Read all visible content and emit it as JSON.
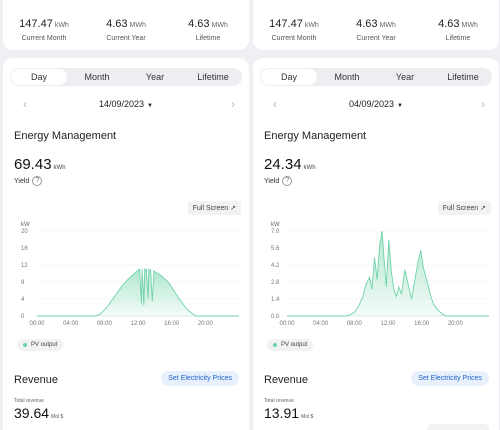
{
  "panes": [
    {
      "summary": [
        {
          "value": "147.47",
          "unit": "kWh",
          "label": "Current Month"
        },
        {
          "value": "4.63",
          "unit": "MWh",
          "label": "Current Year"
        },
        {
          "value": "4.63",
          "unit": "MWh",
          "label": "Lifetime"
        }
      ],
      "tabs": [
        {
          "label": "Day",
          "active": true
        },
        {
          "label": "Month",
          "active": false
        },
        {
          "label": "Year",
          "active": false
        },
        {
          "label": "Lifetime",
          "active": false
        }
      ],
      "date": "14/09/2023",
      "section_title": "Energy Management",
      "yield": {
        "value": "69.43",
        "unit": "kWh",
        "label": "Yield"
      },
      "fullscreen_label": "Full Screen",
      "legend_label": "PV output",
      "revenue": {
        "title": "Revenue",
        "button_label": "Set Electricity Prices",
        "total_label": "Total revenue",
        "total_value": "39.64",
        "total_unit": "Mol $"
      },
      "chart_data": {
        "type": "area",
        "title": "",
        "ylabel": "kW",
        "xlabel": "",
        "x_ticks": [
          "00:00",
          "04:00",
          "08:00",
          "12:00",
          "16:00",
          "20:00"
        ],
        "y_ticks": [
          "0",
          "4",
          "8",
          "12",
          "16",
          "20"
        ],
        "ylim": [
          0,
          20
        ],
        "xlim": [
          0,
          24
        ],
        "grid": true,
        "series": [
          {
            "name": "PV output",
            "color": "#6fd3a8",
            "x": [
              0,
              6.9,
              7.2,
              7.6,
              8.0,
              8.5,
              9.0,
              9.5,
              10.0,
              10.5,
              11.0,
              11.3,
              11.6,
              11.8,
              12.0,
              12.2,
              12.4,
              12.5,
              12.7,
              12.8,
              13.0,
              13.2,
              13.3,
              13.5,
              13.7,
              13.9,
              14.0,
              14.2,
              14.4,
              14.6,
              14.8,
              15.0,
              15.5,
              16.0,
              16.5,
              17.0,
              17.5,
              18.0,
              18.5,
              18.9,
              24
            ],
            "y": [
              0,
              0,
              0.2,
              0.6,
              1.4,
              2.6,
              4.0,
              5.4,
              6.8,
              8.0,
              9.0,
              9.5,
              10.0,
              10.4,
              10.8,
              11.0,
              3.0,
              11.0,
              2.5,
              11.0,
              11.0,
              4.0,
              11.0,
              10.8,
              3.5,
              10.6,
              10.4,
              10.2,
              10.0,
              9.7,
              9.4,
              9.0,
              8.2,
              6.8,
              5.2,
              3.8,
              2.4,
              1.3,
              0.5,
              0,
              0
            ]
          }
        ]
      }
    },
    {
      "summary": [
        {
          "value": "147.47",
          "unit": "kWh",
          "label": "Current Month"
        },
        {
          "value": "4.63",
          "unit": "MWh",
          "label": "Current Year"
        },
        {
          "value": "4.63",
          "unit": "MWh",
          "label": "Lifetime"
        }
      ],
      "tabs": [
        {
          "label": "Day",
          "active": true
        },
        {
          "label": "Month",
          "active": false
        },
        {
          "label": "Year",
          "active": false
        },
        {
          "label": "Lifetime",
          "active": false
        }
      ],
      "date": "04/09/2023",
      "section_title": "Energy Management",
      "yield": {
        "value": "24.34",
        "unit": "kWh",
        "label": "Yield"
      },
      "fullscreen_label": "Full Screen",
      "legend_label": "PV output",
      "revenue": {
        "title": "Revenue",
        "button_label": "Set Electricity Prices",
        "total_label": "Total revenue",
        "total_value": "13.91",
        "total_unit": "Mol $"
      },
      "chart_data": {
        "type": "area",
        "title": "",
        "ylabel": "kW",
        "xlabel": "",
        "x_ticks": [
          "00:00",
          "04:00",
          "08:00",
          "12:00",
          "16:00",
          "20:00"
        ],
        "y_ticks": [
          "0.0",
          "1.4",
          "2.8",
          "4.2",
          "5.6",
          "7.0"
        ],
        "ylim": [
          0,
          7
        ],
        "xlim": [
          0,
          24
        ],
        "grid": true,
        "series": [
          {
            "name": "PV output",
            "color": "#6fd3a8",
            "x": [
              0,
              7.0,
              7.5,
              8.0,
              8.5,
              9.0,
              9.4,
              9.8,
              10.1,
              10.4,
              10.7,
              11.0,
              11.3,
              11.5,
              11.8,
              12.1,
              12.4,
              12.7,
              13.0,
              13.3,
              13.6,
              14.0,
              14.4,
              14.8,
              15.2,
              15.6,
              15.9,
              16.2,
              16.5,
              16.8,
              17.1,
              17.4,
              17.8,
              18.2,
              18.6,
              19.0,
              24
            ],
            "y": [
              0,
              0,
              0.1,
              0.3,
              0.8,
              1.6,
              2.6,
              3.2,
              2.2,
              4.8,
              3.0,
              5.8,
              7.0,
              5.0,
              2.4,
              6.3,
              3.6,
              2.2,
              1.6,
              2.4,
              1.8,
              3.8,
              2.6,
              1.4,
              3.0,
              4.6,
              5.4,
              4.0,
              3.2,
              2.4,
              1.6,
              1.0,
              0.6,
              0.3,
              0.1,
              0,
              0
            ]
          }
        ]
      }
    }
  ]
}
